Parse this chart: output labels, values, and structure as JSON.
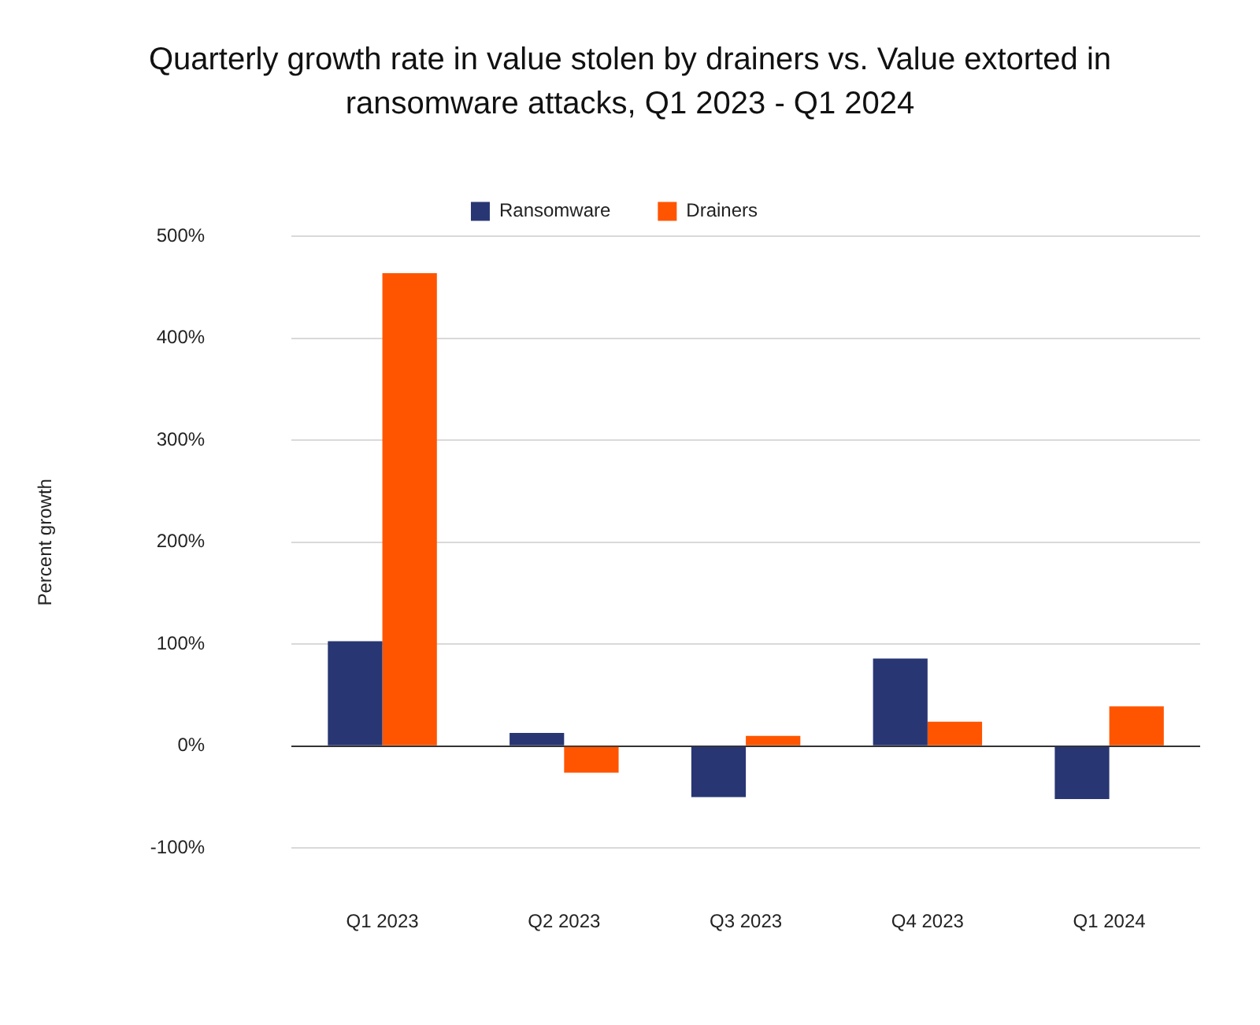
{
  "chart_data": {
    "type": "bar",
    "title": "Quarterly growth rate in value stolen by drainers vs. Value extorted in ransomware attacks, Q1 2023 - Q1 2024",
    "ylabel": "Percent growth",
    "categories": [
      "Q1 2023",
      "Q2 2023",
      "Q3 2023",
      "Q4 2023",
      "Q1 2024"
    ],
    "series": [
      {
        "name": "Ransomware",
        "color": "#283673",
        "values": [
          103,
          13,
          -50,
          86,
          -52
        ]
      },
      {
        "name": "Drainers",
        "color": "#ff5500",
        "values": [
          464,
          -26,
          10,
          24,
          39
        ]
      }
    ],
    "ylim": [
      -100,
      500
    ],
    "yticks": [
      {
        "value": -100,
        "label": "-100%"
      },
      {
        "value": 0,
        "label": "0%"
      },
      {
        "value": 100,
        "label": "100%"
      },
      {
        "value": 200,
        "label": "200%"
      },
      {
        "value": 300,
        "label": "300%"
      },
      {
        "value": 400,
        "label": "400%"
      },
      {
        "value": 500,
        "label": "500%"
      }
    ],
    "grid": "y",
    "legend": "top"
  }
}
